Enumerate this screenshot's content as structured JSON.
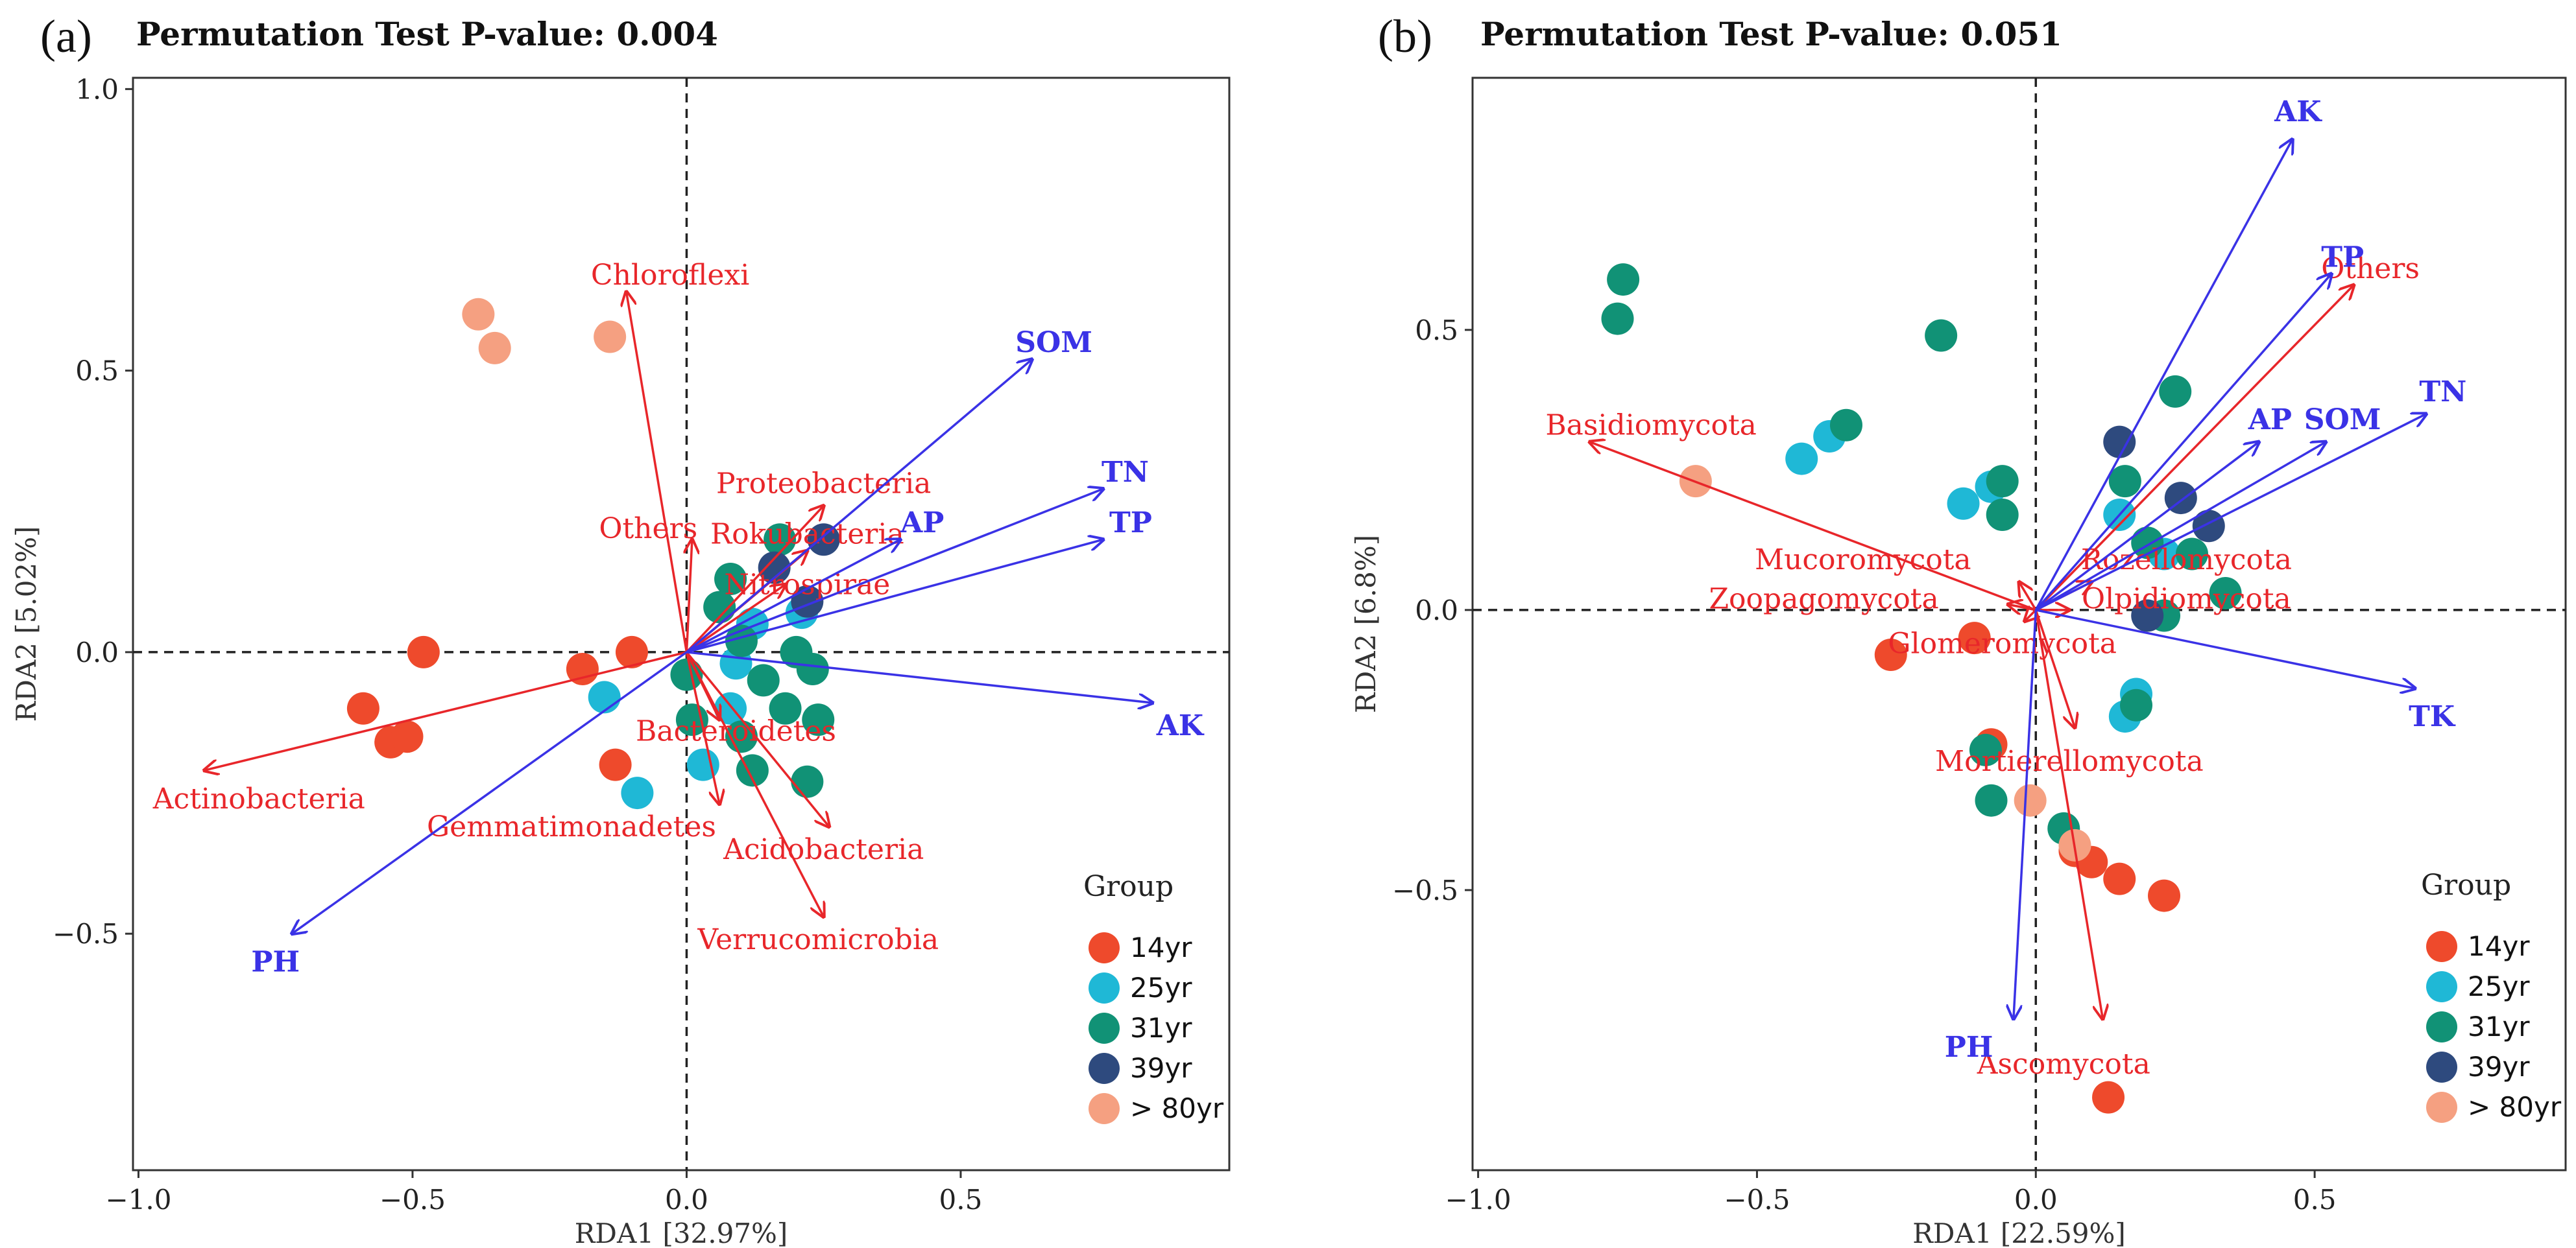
{
  "colors": {
    "taxon_arrow": "#e8262a",
    "env_arrow": "#3a32e6",
    "axis_frame": "#333333",
    "zero_line": "#222222",
    "groups": {
      "14yr": "#ee4a2c",
      "25yr": "#1fb8d6",
      "31yr": "#119276",
      "39yr": "#2e4a7e",
      "> 80yr": "#f5a081"
    }
  },
  "chart_data": [
    {
      "type": "scatter",
      "panel_label": "(a)",
      "title": "Permutation Test P-value: 0.004",
      "xlabel": "RDA1 [32.97%]",
      "ylabel": "RDA2 [5.02%]",
      "xlim": [
        -1.01,
        0.99
      ],
      "ylim": [
        -0.92,
        1.02
      ],
      "xticks": [
        -1.0,
        -0.5,
        0.0,
        0.5
      ],
      "xtick_labels": [
        "−1.0",
        "−0.5",
        "0.0",
        "0.5"
      ],
      "yticks": [
        -0.5,
        0.0,
        0.5,
        1.0
      ],
      "ytick_labels": [
        "−0.5",
        "0.0",
        "0.5",
        "1.0"
      ],
      "legend_title": "Group",
      "legend_position": "bottom-right",
      "legend_entries": [
        "14yr",
        "25yr",
        "31yr",
        "39yr",
        "> 80yr"
      ],
      "taxa_arrows": [
        {
          "label": "Chloroflexi",
          "x": -0.11,
          "y": 0.64,
          "lx": -0.03,
          "ly": 0.67
        },
        {
          "label": "Others",
          "x": 0.01,
          "y": 0.2,
          "lx": -0.07,
          "ly": 0.22
        },
        {
          "label": "Proteobacteria",
          "x": 0.25,
          "y": 0.26,
          "lx": 0.25,
          "ly": 0.3
        },
        {
          "label": "Rokubacteria",
          "x": 0.22,
          "y": 0.18,
          "lx": 0.22,
          "ly": 0.21
        },
        {
          "label": "Nitrospirae",
          "x": 0.18,
          "y": 0.12,
          "lx": 0.22,
          "ly": 0.12
        },
        {
          "label": "Bacteroidetes",
          "x": 0.06,
          "y": -0.12,
          "lx": 0.09,
          "ly": -0.14
        },
        {
          "label": "Actinobacteria",
          "x": -0.88,
          "y": -0.21,
          "lx": -0.78,
          "ly": -0.26
        },
        {
          "label": "Gemmatimonadetes",
          "x": 0.06,
          "y": -0.27,
          "lx": -0.21,
          "ly": -0.31
        },
        {
          "label": "Acidobacteria",
          "x": 0.26,
          "y": -0.31,
          "lx": 0.25,
          "ly": -0.35
        },
        {
          "label": "Verrucomicrobia",
          "x": 0.25,
          "y": -0.47,
          "lx": 0.24,
          "ly": -0.51
        }
      ],
      "env_arrows": [
        {
          "label": "SOM",
          "x": 0.63,
          "y": 0.52,
          "lx": 0.67,
          "ly": 0.55
        },
        {
          "label": "TN",
          "x": 0.76,
          "y": 0.29,
          "lx": 0.8,
          "ly": 0.32
        },
        {
          "label": "AP",
          "x": 0.39,
          "y": 0.2,
          "lx": 0.43,
          "ly": 0.23
        },
        {
          "label": "TP",
          "x": 0.76,
          "y": 0.2,
          "lx": 0.81,
          "ly": 0.23
        },
        {
          "label": "AK",
          "x": 0.85,
          "y": -0.09,
          "lx": 0.9,
          "ly": -0.13
        },
        {
          "label": "PH",
          "x": -0.72,
          "y": -0.5,
          "lx": -0.75,
          "ly": -0.55
        }
      ],
      "points": [
        {
          "group": "14yr",
          "x": -0.48,
          "y": 0.0
        },
        {
          "group": "14yr",
          "x": -0.59,
          "y": -0.1
        },
        {
          "group": "14yr",
          "x": -0.54,
          "y": -0.16
        },
        {
          "group": "14yr",
          "x": -0.51,
          "y": -0.15
        },
        {
          "group": "14yr",
          "x": -0.19,
          "y": -0.03
        },
        {
          "group": "14yr",
          "x": -0.1,
          "y": 0.0
        },
        {
          "group": "14yr",
          "x": -0.13,
          "y": -0.2
        },
        {
          "group": "25yr",
          "x": -0.15,
          "y": -0.08
        },
        {
          "group": "25yr",
          "x": -0.09,
          "y": -0.25
        },
        {
          "group": "25yr",
          "x": 0.03,
          "y": -0.2
        },
        {
          "group": "25yr",
          "x": 0.09,
          "y": -0.02
        },
        {
          "group": "25yr",
          "x": 0.12,
          "y": 0.05
        },
        {
          "group": "25yr",
          "x": 0.21,
          "y": 0.07
        },
        {
          "group": "25yr",
          "x": 0.08,
          "y": -0.1
        },
        {
          "group": "31yr",
          "x": 0.0,
          "y": -0.04
        },
        {
          "group": "31yr",
          "x": 0.08,
          "y": 0.13
        },
        {
          "group": "31yr",
          "x": 0.17,
          "y": 0.2
        },
        {
          "group": "31yr",
          "x": 0.1,
          "y": 0.02
        },
        {
          "group": "31yr",
          "x": 0.14,
          "y": -0.05
        },
        {
          "group": "31yr",
          "x": 0.18,
          "y": -0.1
        },
        {
          "group": "31yr",
          "x": 0.23,
          "y": -0.03
        },
        {
          "group": "31yr",
          "x": 0.2,
          "y": 0.0
        },
        {
          "group": "31yr",
          "x": 0.12,
          "y": -0.21
        },
        {
          "group": "31yr",
          "x": 0.1,
          "y": -0.15
        },
        {
          "group": "31yr",
          "x": 0.22,
          "y": -0.23
        },
        {
          "group": "31yr",
          "x": 0.24,
          "y": -0.12
        },
        {
          "group": "31yr",
          "x": 0.01,
          "y": -0.12
        },
        {
          "group": "31yr",
          "x": 0.06,
          "y": 0.08
        },
        {
          "group": "39yr",
          "x": 0.16,
          "y": 0.15
        },
        {
          "group": "39yr",
          "x": 0.25,
          "y": 0.2
        },
        {
          "group": "39yr",
          "x": 0.22,
          "y": 0.09
        },
        {
          "group": "> 80yr",
          "x": -0.38,
          "y": 0.6
        },
        {
          "group": "> 80yr",
          "x": -0.35,
          "y": 0.54
        },
        {
          "group": "> 80yr",
          "x": -0.14,
          "y": 0.56
        }
      ]
    },
    {
      "type": "scatter",
      "panel_label": "(b)",
      "title": "Permutation Test P-value: 0.051",
      "xlabel": "RDA1 [22.59%]",
      "ylabel": "RDA2 [6.8%]",
      "xlim": [
        -1.01,
        0.95
      ],
      "ylim": [
        -1.0,
        0.95
      ],
      "xticks": [
        -1.0,
        -0.5,
        0.0,
        0.5
      ],
      "xtick_labels": [
        "−1.0",
        "−0.5",
        "0.0",
        "0.5"
      ],
      "yticks": [
        -0.5,
        0.0,
        0.5
      ],
      "ytick_labels": [
        "−0.5",
        "0.0",
        "0.5"
      ],
      "legend_title": "Group",
      "legend_position": "bottom-right",
      "legend_entries": [
        "14yr",
        "25yr",
        "31yr",
        "39yr",
        "> 80yr"
      ],
      "taxa_arrows": [
        {
          "label": "Others",
          "x": 0.57,
          "y": 0.58,
          "lx": 0.6,
          "ly": 0.61
        },
        {
          "label": "Basidiomycota",
          "x": -0.8,
          "y": 0.3,
          "lx": -0.69,
          "ly": 0.33
        },
        {
          "label": "Mucoromycota",
          "x": -0.03,
          "y": 0.05,
          "lx": -0.31,
          "ly": 0.09
        },
        {
          "label": "Rozellomycota",
          "x": 0.1,
          "y": 0.05,
          "lx": 0.27,
          "ly": 0.09
        },
        {
          "label": "Zoopagomycota",
          "x": -0.05,
          "y": 0.01,
          "lx": -0.38,
          "ly": 0.02
        },
        {
          "label": "Olpidiomycota",
          "x": 0.06,
          "y": 0.0,
          "lx": 0.27,
          "ly": 0.02
        },
        {
          "label": "Glomeromycota",
          "x": -0.02,
          "y": -0.02,
          "lx": -0.06,
          "ly": -0.06
        },
        {
          "label": "Mortierellomycota",
          "x": 0.07,
          "y": -0.21,
          "lx": 0.06,
          "ly": -0.27
        },
        {
          "label": "Ascomycota",
          "x": 0.12,
          "y": -0.73,
          "lx": 0.05,
          "ly": -0.81
        }
      ],
      "env_arrows": [
        {
          "label": "AK",
          "x": 0.46,
          "y": 0.84,
          "lx": 0.47,
          "ly": 0.89
        },
        {
          "label": "TP",
          "x": 0.53,
          "y": 0.6,
          "lx": 0.55,
          "ly": 0.63
        },
        {
          "label": "TN",
          "x": 0.7,
          "y": 0.35,
          "lx": 0.73,
          "ly": 0.39
        },
        {
          "label": "AP",
          "x": 0.4,
          "y": 0.3,
          "lx": 0.42,
          "ly": 0.34
        },
        {
          "label": "SOM",
          "x": 0.52,
          "y": 0.3,
          "lx": 0.55,
          "ly": 0.34
        },
        {
          "label": "TK",
          "x": 0.68,
          "y": -0.14,
          "lx": 0.71,
          "ly": -0.19
        },
        {
          "label": "PH",
          "x": -0.04,
          "y": -0.73,
          "lx": -0.12,
          "ly": -0.78
        }
      ],
      "points": [
        {
          "group": "14yr",
          "x": -0.26,
          "y": -0.08
        },
        {
          "group": "14yr",
          "x": -0.08,
          "y": -0.24
        },
        {
          "group": "14yr",
          "x": 0.07,
          "y": -0.43
        },
        {
          "group": "14yr",
          "x": 0.1,
          "y": -0.45
        },
        {
          "group": "14yr",
          "x": 0.15,
          "y": -0.48
        },
        {
          "group": "14yr",
          "x": 0.23,
          "y": -0.51
        },
        {
          "group": "14yr",
          "x": 0.13,
          "y": -0.87
        },
        {
          "group": "14yr",
          "x": -0.11,
          "y": -0.05
        },
        {
          "group": "25yr",
          "x": -0.42,
          "y": 0.27
        },
        {
          "group": "25yr",
          "x": -0.37,
          "y": 0.31
        },
        {
          "group": "25yr",
          "x": -0.13,
          "y": 0.19
        },
        {
          "group": "25yr",
          "x": -0.08,
          "y": 0.22
        },
        {
          "group": "25yr",
          "x": 0.15,
          "y": 0.17
        },
        {
          "group": "25yr",
          "x": 0.23,
          "y": 0.1
        },
        {
          "group": "25yr",
          "x": 0.18,
          "y": -0.15
        },
        {
          "group": "25yr",
          "x": 0.16,
          "y": -0.19
        },
        {
          "group": "31yr",
          "x": -0.74,
          "y": 0.59
        },
        {
          "group": "31yr",
          "x": -0.75,
          "y": 0.52
        },
        {
          "group": "31yr",
          "x": -0.34,
          "y": 0.33
        },
        {
          "group": "31yr",
          "x": -0.17,
          "y": 0.49
        },
        {
          "group": "31yr",
          "x": -0.06,
          "y": 0.23
        },
        {
          "group": "31yr",
          "x": -0.06,
          "y": 0.17
        },
        {
          "group": "31yr",
          "x": 0.16,
          "y": 0.23
        },
        {
          "group": "31yr",
          "x": 0.25,
          "y": 0.39
        },
        {
          "group": "31yr",
          "x": 0.2,
          "y": 0.12
        },
        {
          "group": "31yr",
          "x": 0.28,
          "y": 0.1
        },
        {
          "group": "31yr",
          "x": 0.34,
          "y": 0.03
        },
        {
          "group": "31yr",
          "x": 0.23,
          "y": -0.01
        },
        {
          "group": "31yr",
          "x": 0.18,
          "y": -0.17
        },
        {
          "group": "31yr",
          "x": -0.09,
          "y": -0.25
        },
        {
          "group": "31yr",
          "x": -0.08,
          "y": -0.34
        },
        {
          "group": "31yr",
          "x": 0.05,
          "y": -0.39
        },
        {
          "group": "39yr",
          "x": 0.15,
          "y": 0.3
        },
        {
          "group": "39yr",
          "x": 0.26,
          "y": 0.2
        },
        {
          "group": "39yr",
          "x": 0.31,
          "y": 0.15
        },
        {
          "group": "39yr",
          "x": 0.2,
          "y": -0.01
        },
        {
          "group": "> 80yr",
          "x": -0.61,
          "y": 0.23
        },
        {
          "group": "> 80yr",
          "x": -0.01,
          "y": -0.34
        },
        {
          "group": "> 80yr",
          "x": 0.07,
          "y": -0.42
        }
      ]
    }
  ]
}
